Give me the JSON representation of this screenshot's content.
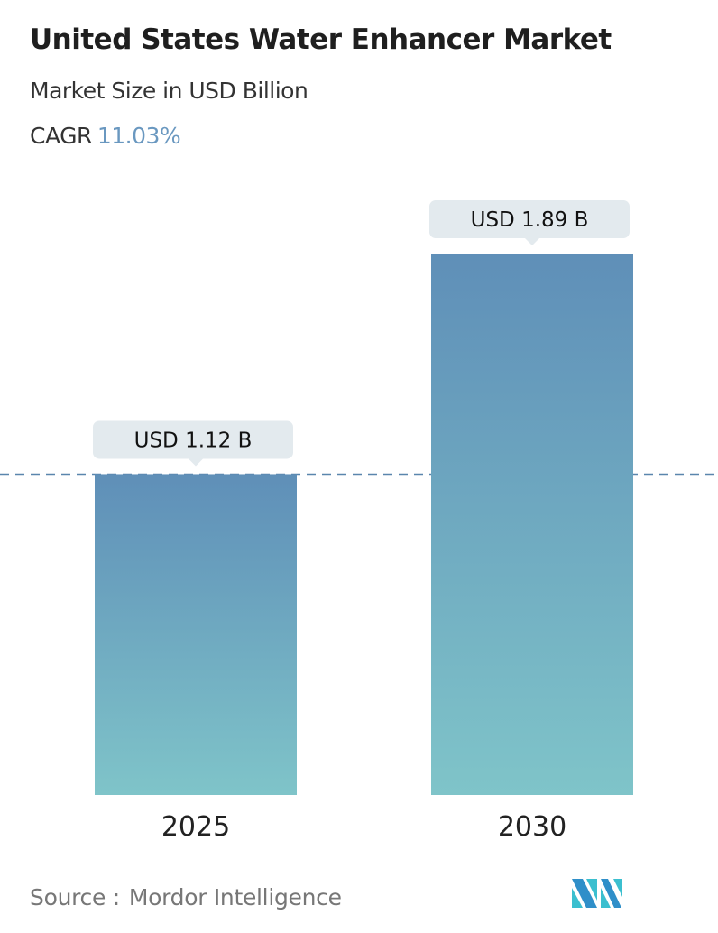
{
  "header": {
    "title": "United States Water Enhancer Market",
    "subtitle": "Market Size in USD Billion",
    "cagr_label": "CAGR",
    "cagr_value": "11.03%"
  },
  "chart_data": {
    "type": "bar",
    "categories": [
      "2025",
      "2030"
    ],
    "values": [
      1.12,
      1.89
    ],
    "data_labels": [
      "USD 1.12 B",
      "USD 1.89 B"
    ],
    "title": "United States Water Enhancer Market",
    "ylabel": "Market Size in USD Billion",
    "ylim": [
      0,
      1.89
    ],
    "grid": false,
    "reference_line": 1.12,
    "colors": {
      "bar_top": "#5f8fb8",
      "bar_bottom": "#7fc4c9",
      "label_bg": "#e3eaee",
      "dashed_line": "#5a86ad"
    }
  },
  "footer": {
    "source_label": "Source :",
    "source_value": "Mordor Intelligence",
    "logo": "mordor-intelligence-logo"
  }
}
